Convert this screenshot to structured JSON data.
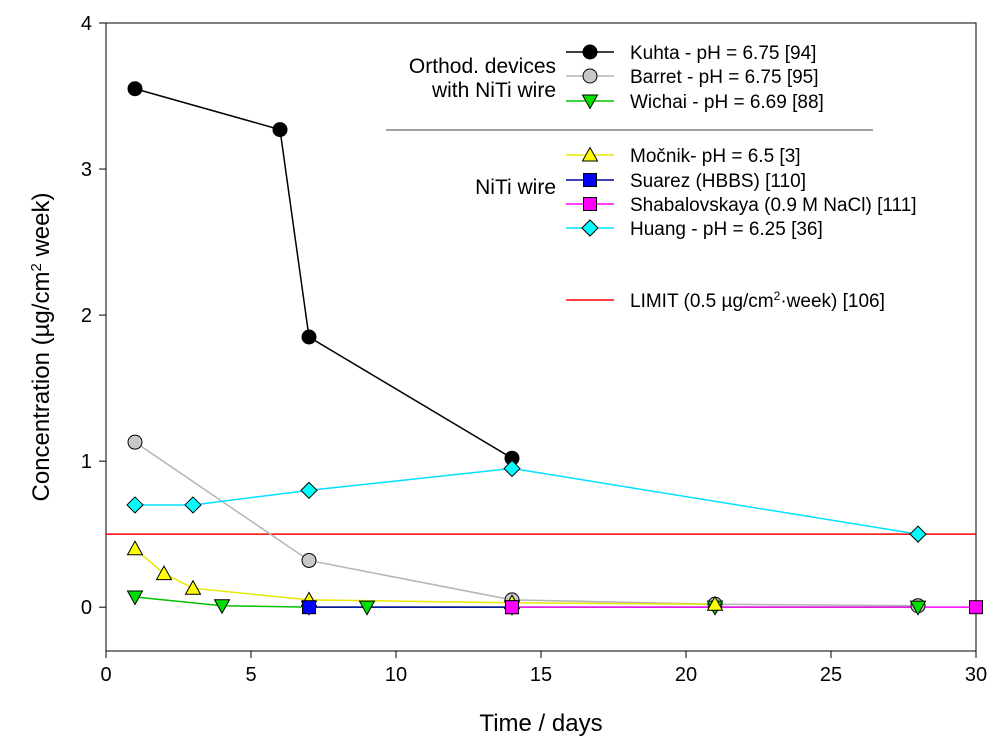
{
  "chart_data": {
    "type": "line",
    "xlabel": "Time / days",
    "ylabel_parts": [
      "Concentration (",
      "µg/cm",
      "2",
      " week)"
    ],
    "xlim": [
      0,
      30
    ],
    "ylim": [
      -0.3,
      4
    ],
    "xticks": [
      0,
      5,
      10,
      15,
      20,
      25,
      30
    ],
    "yticks": [
      0,
      1,
      2,
      3,
      4
    ],
    "grid": false,
    "legend_group_labels": [
      [
        "Orthod. devices",
        "with NiTi wire"
      ],
      [
        "NiTi wire"
      ]
    ],
    "series": [
      {
        "name": "Kuhta - pH = 6.75 [94]",
        "group": 0,
        "marker": "circle",
        "color": "#000000",
        "fill": "#000000",
        "x": [
          1,
          6,
          7,
          14
        ],
        "y": [
          3.55,
          3.27,
          1.85,
          1.02
        ]
      },
      {
        "name": "Barret - pH = 6.75 [95]",
        "group": 0,
        "marker": "circle",
        "color": "#b4b4b4",
        "fill": "#c8c8c8",
        "x": [
          1,
          7,
          14,
          21,
          28
        ],
        "y": [
          1.13,
          0.32,
          0.05,
          0.02,
          0.01
        ]
      },
      {
        "name": "Wichai - pH = 6.69 [88]",
        "group": 0,
        "marker": "triangle-down",
        "color": "#00c000",
        "fill": "#00e000",
        "x": [
          1,
          4,
          7,
          9,
          14,
          21,
          28
        ],
        "y": [
          0.07,
          0.01,
          0.0,
          0.0,
          0.0,
          0.0,
          0.0
        ]
      },
      {
        "name": "Močnik- pH = 6.5 [3]",
        "group": 1,
        "marker": "triangle-up",
        "color": "#e8e800",
        "fill": "#ffff00",
        "x": [
          1,
          2,
          3,
          7,
          14,
          21
        ],
        "y": [
          0.4,
          0.23,
          0.13,
          0.05,
          0.03,
          0.02
        ]
      },
      {
        "name": "Suarez (HBBS) [110]",
        "group": 1,
        "marker": "square",
        "color": "#0000a0",
        "fill": "#0000ff",
        "x": [
          7,
          14
        ],
        "y": [
          0.0,
          0.0
        ]
      },
      {
        "name": "Shabalovskaya  (0.9 M NaCl) [111]",
        "group": 1,
        "marker": "square",
        "color": "#ff00ff",
        "fill": "#ff00ff",
        "x": [
          14,
          30
        ],
        "y": [
          0.0,
          0.0
        ]
      },
      {
        "name": "Huang -  pH = 6.25 [36]",
        "group": 1,
        "marker": "diamond",
        "color": "#00e0ff",
        "fill": "#00ffff",
        "x": [
          1,
          3,
          7,
          14,
          28
        ],
        "y": [
          0.7,
          0.7,
          0.8,
          0.95,
          0.5
        ]
      }
    ],
    "limit": {
      "value": 0.5,
      "color": "#ff0000",
      "label_parts": [
        "LIMIT (0.5 µg/cm",
        "2",
        "·week) [106]"
      ]
    }
  }
}
